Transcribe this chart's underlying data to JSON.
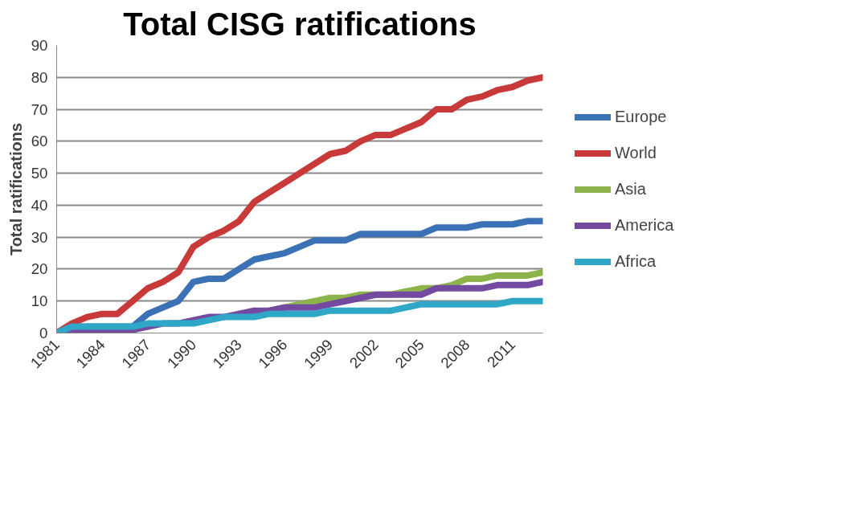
{
  "chart_data": {
    "type": "line",
    "title": "Total CISG ratifications",
    "ylabel": "Total ratifications",
    "x": [
      1981,
      1982,
      1983,
      1984,
      1985,
      1986,
      1987,
      1988,
      1989,
      1990,
      1991,
      1992,
      1993,
      1994,
      1995,
      1996,
      1997,
      1998,
      1999,
      2000,
      2001,
      2002,
      2003,
      2004,
      2005,
      2006,
      2007,
      2008,
      2009,
      2010,
      2011,
      2012,
      2013
    ],
    "series": [
      {
        "name": "Europe",
        "color": "#3b72b5",
        "values": [
          0,
          2,
          2,
          2,
          2,
          2,
          6,
          8,
          10,
          16,
          17,
          17,
          20,
          23,
          24,
          25,
          27,
          29,
          29,
          29,
          31,
          31,
          31,
          31,
          31,
          33,
          33,
          33,
          34,
          34,
          34,
          35,
          35
        ]
      },
      {
        "name": "World",
        "color": "#c8393a",
        "values": [
          0,
          3,
          5,
          6,
          6,
          10,
          14,
          16,
          19,
          27,
          30,
          32,
          35,
          41,
          44,
          47,
          50,
          53,
          56,
          57,
          60,
          62,
          62,
          64,
          66,
          70,
          70,
          73,
          74,
          76,
          77,
          79,
          80
        ]
      },
      {
        "name": "Asia",
        "color": "#8db44a",
        "values": [
          null,
          null,
          null,
          null,
          null,
          null,
          null,
          null,
          null,
          null,
          null,
          null,
          null,
          null,
          7,
          8,
          9,
          10,
          11,
          11,
          12,
          12,
          12,
          13,
          14,
          14,
          15,
          17,
          17,
          18,
          18,
          18,
          19
        ]
      },
      {
        "name": "America",
        "color": "#7449a0",
        "values": [
          0,
          1,
          1,
          1,
          1,
          1,
          2,
          3,
          3,
          4,
          5,
          5,
          6,
          7,
          7,
          8,
          8,
          8,
          9,
          10,
          11,
          12,
          12,
          12,
          12,
          14,
          14,
          14,
          14,
          15,
          15,
          15,
          16
        ]
      },
      {
        "name": "Africa",
        "color": "#2fa7c7",
        "values": [
          0,
          2,
          2,
          2,
          2,
          2,
          3,
          3,
          3,
          3,
          4,
          5,
          5,
          5,
          6,
          6,
          6,
          6,
          7,
          7,
          7,
          7,
          7,
          8,
          9,
          9,
          9,
          9,
          9,
          9,
          10,
          10,
          10
        ]
      }
    ],
    "xlim": [
      1981,
      2013
    ],
    "xticks": [
      1981,
      1984,
      1987,
      1990,
      1993,
      1996,
      1999,
      2002,
      2005,
      2008,
      2011
    ],
    "ylim": [
      0,
      90
    ],
    "yticks": [
      0,
      10,
      20,
      30,
      40,
      50,
      60,
      70,
      80,
      90
    ],
    "grid": "y",
    "legend": "right",
    "marker": "none",
    "line_style": "solid"
  }
}
